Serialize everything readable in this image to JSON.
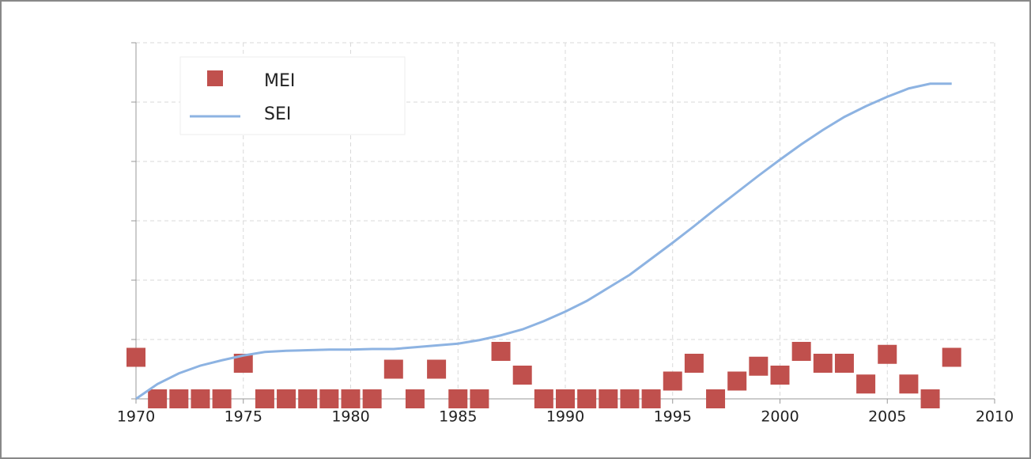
{
  "chart_data": {
    "type": "scatter",
    "x": [
      1970,
      1971,
      1972,
      1973,
      1974,
      1975,
      1976,
      1977,
      1978,
      1979,
      1980,
      1981,
      1982,
      1983,
      1984,
      1985,
      1986,
      1987,
      1988,
      1989,
      1990,
      1991,
      1992,
      1993,
      1994,
      1995,
      1996,
      1997,
      1998,
      1999,
      2000,
      2001,
      2002,
      2003,
      2004,
      2005,
      2006,
      2007,
      2008
    ],
    "series": [
      {
        "name": "MEI",
        "type": "scatter",
        "color": "#c0504d",
        "values": [
          0.7,
          0,
          0,
          0,
          0,
          0.6,
          0,
          0,
          0,
          0,
          0,
          0,
          0.5,
          0,
          0.5,
          0,
          0,
          0.8,
          0.4,
          0,
          0,
          0,
          0,
          0,
          0,
          0.3,
          0.6,
          0,
          0.3,
          0.55,
          0.4,
          0.8,
          0.6,
          0.6,
          0.25,
          0.75,
          0.25,
          0,
          0.7
        ]
      },
      {
        "name": "SEI",
        "type": "line",
        "color": "#8db3e2",
        "values": [
          0,
          0.25,
          0.43,
          0.56,
          0.65,
          0.73,
          0.79,
          0.81,
          0.82,
          0.83,
          0.83,
          0.84,
          0.84,
          0.87,
          0.9,
          0.93,
          0.99,
          1.07,
          1.17,
          1.31,
          1.47,
          1.65,
          1.87,
          2.09,
          2.36,
          2.63,
          2.91,
          3.2,
          3.48,
          3.76,
          4.03,
          4.29,
          4.53,
          4.75,
          4.93,
          5.09,
          5.23,
          5.31,
          5.31
        ]
      }
    ],
    "xlim": [
      1970,
      2010
    ],
    "xticks": [
      1970,
      1975,
      1980,
      1985,
      1990,
      1995,
      2000,
      2005,
      2010
    ],
    "ylim": [
      0,
      6
    ],
    "yticks": [
      0,
      1,
      2,
      3,
      4,
      5,
      6
    ],
    "grid": true
  }
}
